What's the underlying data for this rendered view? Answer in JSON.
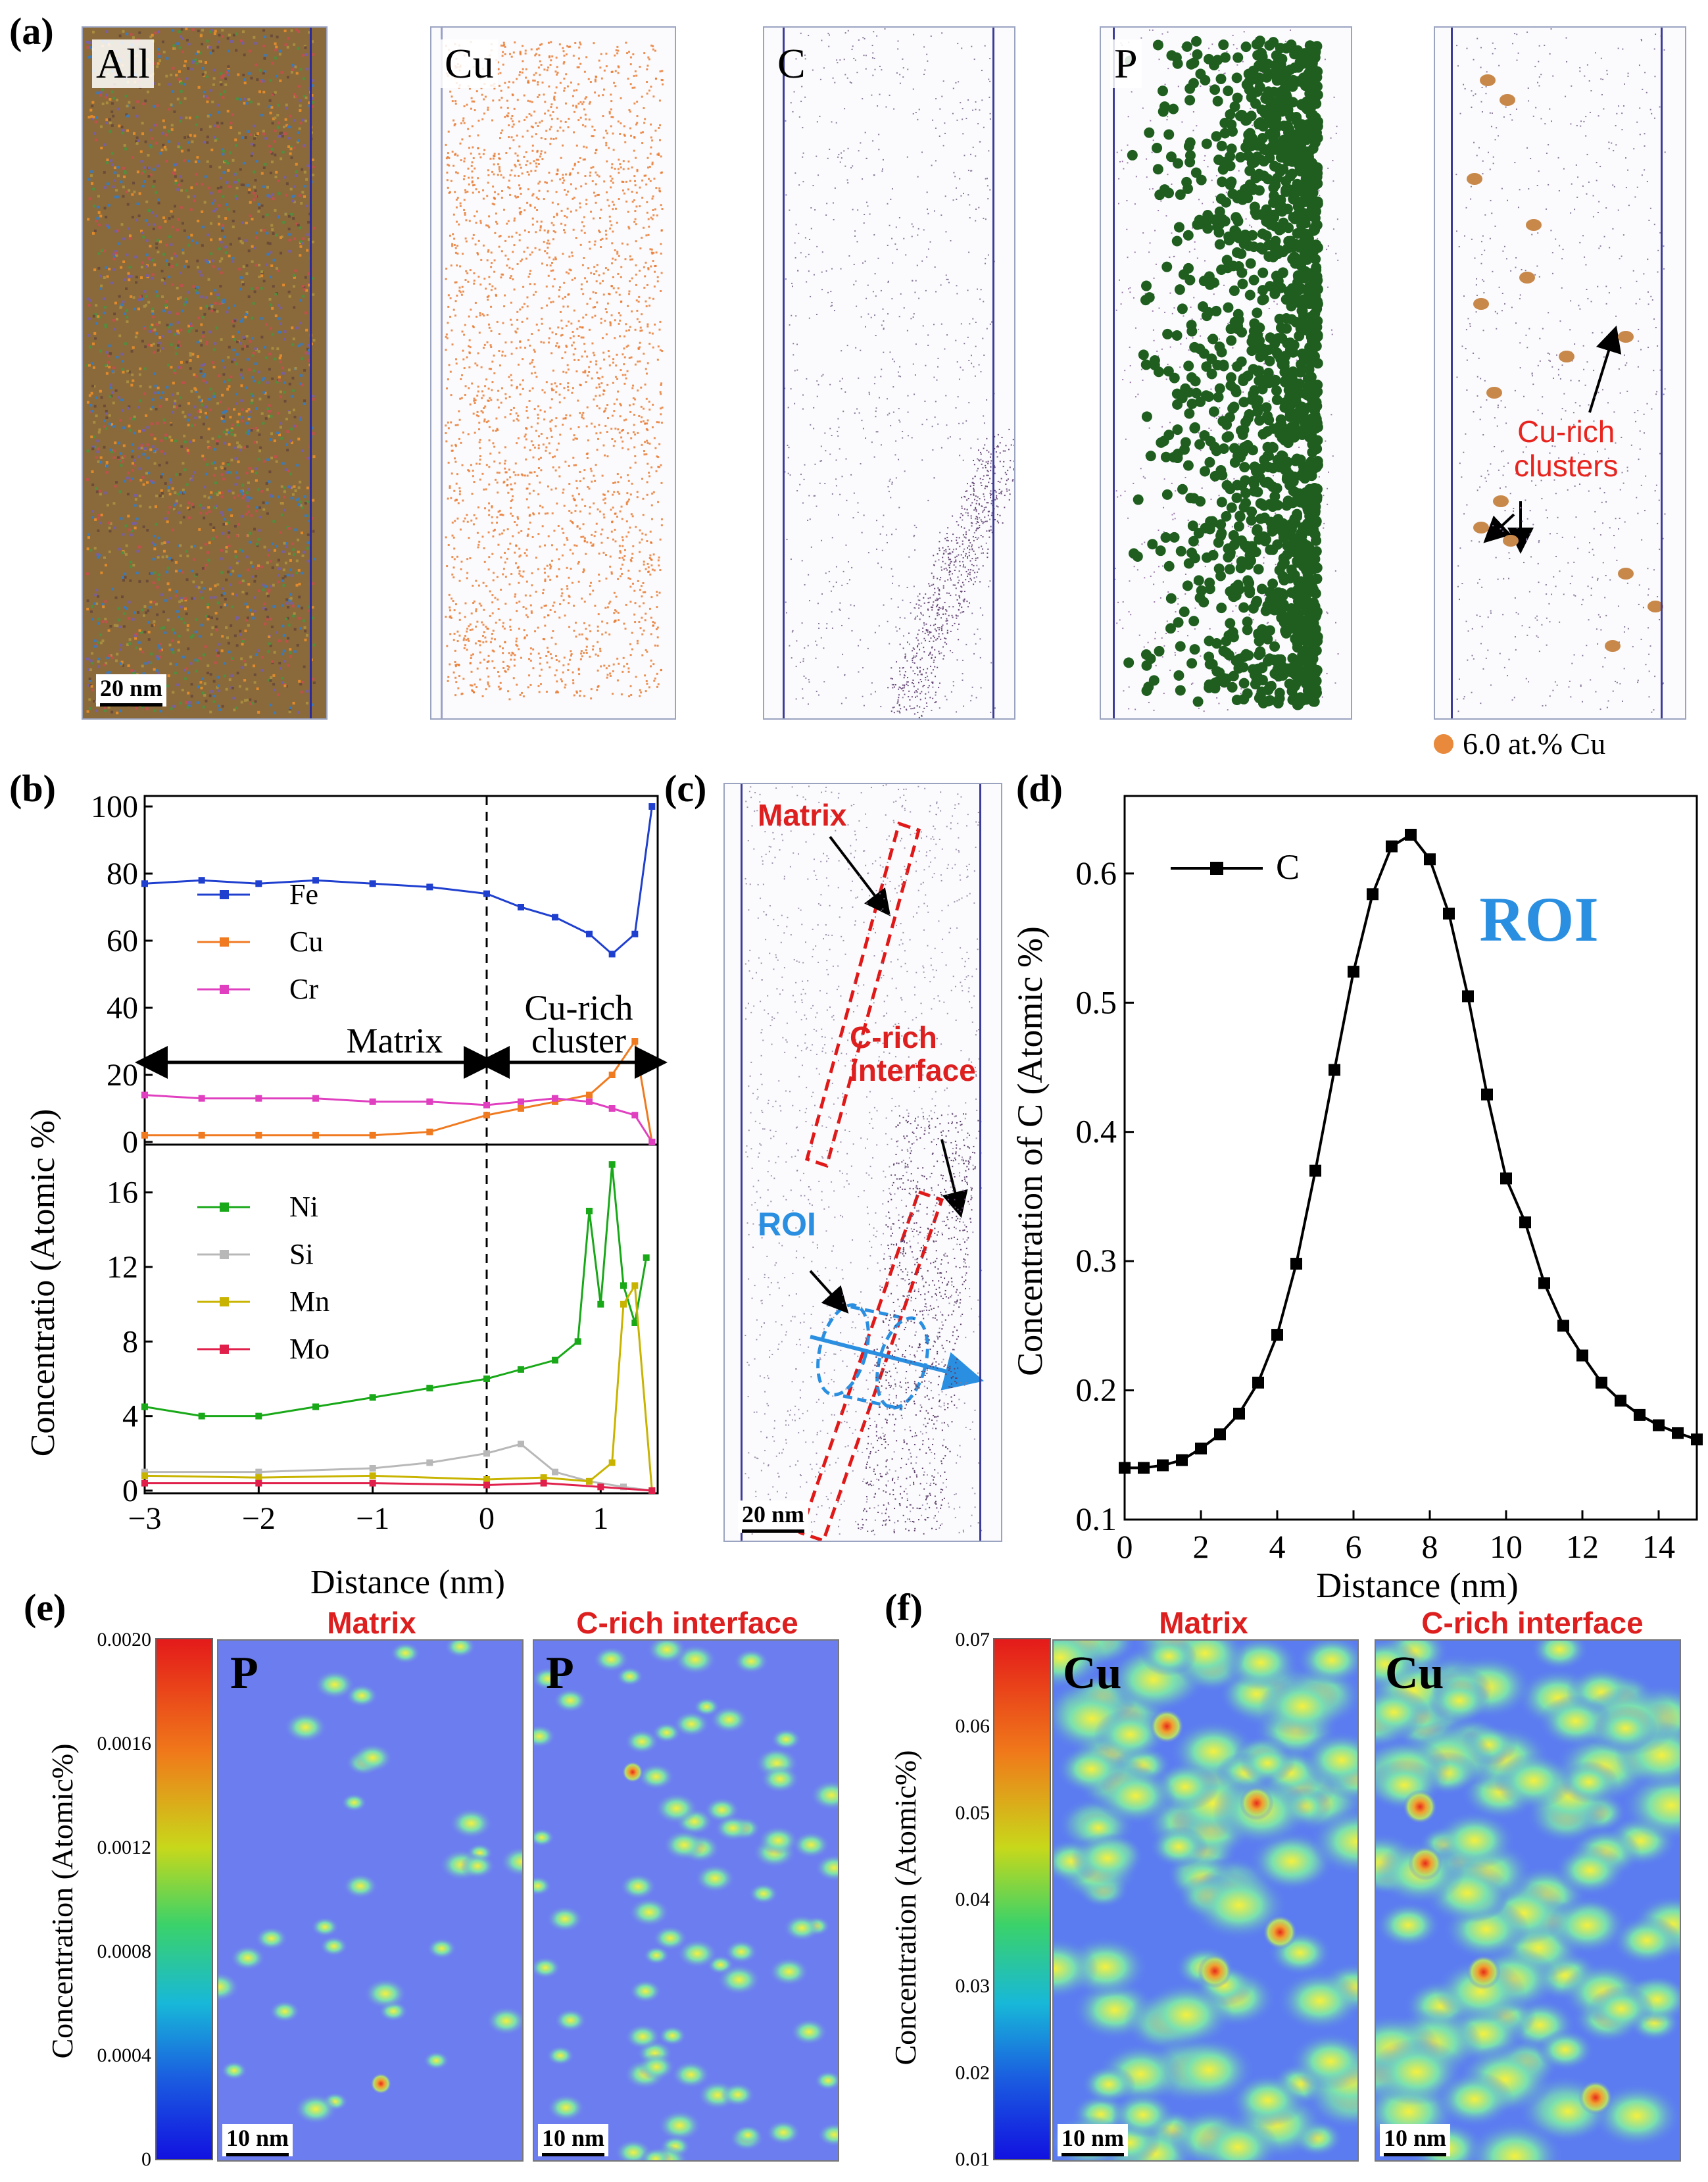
{
  "panel_a": {
    "label": "(a)",
    "boxes": [
      {
        "tag": "All",
        "fill": "mixed"
      },
      {
        "tag": "Cu",
        "fill": "#e8772c"
      },
      {
        "tag": "C",
        "fill": "#6b4c7a"
      },
      {
        "tag": "P",
        "fill": "#1f5e1f"
      },
      {
        "tag": "",
        "fill": "#6b4c7a"
      }
    ],
    "scale": "20 nm",
    "annotation": "Cu-rich\nclusters",
    "legend": "6.0 at.% Cu",
    "legend_color": "#e8893c"
  },
  "panel_b": {
    "label": "(b)",
    "ylabel": "Concentratio (Atomic %)",
    "xlabel": "Distance (nm)",
    "matrix_label": "Matrix",
    "cluster_label": "Cu-rich\ncluster",
    "chart_data": {
      "type": "line",
      "x_ticks": [
        "−3",
        "−2",
        "−1",
        "0",
        "1"
      ],
      "xlim": [
        -3,
        1.5
      ],
      "top": {
        "ylim": [
          0,
          100
        ],
        "y_ticks": [
          "0",
          "20",
          "40",
          "60",
          "80",
          "100"
        ],
        "series": [
          {
            "name": "Fe",
            "color": "#1f3fcf",
            "marker": "square",
            "x": [
              -3,
              -2.5,
              -2,
              -1.5,
              -1,
              -0.5,
              0,
              0.3,
              0.6,
              0.9,
              1.1,
              1.3,
              1.45
            ],
            "values": [
              77,
              78,
              77,
              78,
              77,
              76,
              74,
              70,
              67,
              62,
              56,
              62,
              100
            ]
          },
          {
            "name": "Cu",
            "color": "#f07a20",
            "marker": "triangle",
            "x": [
              -3,
              -2.5,
              -2,
              -1.5,
              -1,
              -0.5,
              0,
              0.3,
              0.6,
              0.9,
              1.1,
              1.3,
              1.45
            ],
            "values": [
              2,
              2,
              2,
              2,
              2,
              3,
              8,
              10,
              12,
              14,
              20,
              30,
              0
            ]
          },
          {
            "name": "Cr",
            "color": "#e040c0",
            "marker": "triangle-left",
            "x": [
              -3,
              -2.5,
              -2,
              -1.5,
              -1,
              -0.5,
              0,
              0.3,
              0.6,
              0.9,
              1.1,
              1.3,
              1.45
            ],
            "values": [
              14,
              13,
              13,
              13,
              12,
              12,
              11,
              12,
              13,
              12,
              10,
              8,
              0
            ]
          }
        ]
      },
      "bottom": {
        "ylim": [
          0,
          18
        ],
        "y_ticks": [
          "0",
          "4",
          "8",
          "12",
          "16"
        ],
        "series": [
          {
            "name": "Ni",
            "color": "#18a818",
            "marker": "diamond",
            "x": [
              -3,
              -2.5,
              -2,
              -1.5,
              -1,
              -0.5,
              0,
              0.3,
              0.6,
              0.8,
              0.9,
              1.0,
              1.1,
              1.2,
              1.3,
              1.4
            ],
            "values": [
              4.5,
              4,
              4,
              4.5,
              5,
              5.5,
              6,
              6.5,
              7,
              8,
              15,
              10,
              17.5,
              11,
              9,
              12.5
            ]
          },
          {
            "name": "Si",
            "color": "#b8b8b8",
            "marker": "triangle-right",
            "x": [
              -3,
              -2,
              -1,
              -0.5,
              0,
              0.3,
              0.6,
              0.9,
              1.2,
              1.45
            ],
            "values": [
              1,
              1,
              1.2,
              1.5,
              2,
              2.5,
              1,
              0.5,
              0.2,
              0
            ]
          },
          {
            "name": "Mn",
            "color": "#c8b400",
            "marker": "circle",
            "x": [
              -3,
              -2,
              -1,
              0,
              0.5,
              0.9,
              1.1,
              1.2,
              1.3,
              1.45
            ],
            "values": [
              0.8,
              0.7,
              0.8,
              0.6,
              0.7,
              0.5,
              1.5,
              10,
              11,
              0
            ]
          },
          {
            "name": "Mo",
            "color": "#e0204a",
            "marker": "star",
            "x": [
              -3,
              -2,
              -1,
              0,
              0.5,
              1.0,
              1.45
            ],
            "values": [
              0.4,
              0.4,
              0.4,
              0.3,
              0.4,
              0.2,
              0
            ]
          }
        ]
      }
    }
  },
  "panel_c": {
    "label": "(c)",
    "matrix": "Matrix",
    "crich": "C-rich\ninterface",
    "roi": "ROI",
    "scale": "20 nm"
  },
  "panel_d": {
    "label": "(d)",
    "legend": "C",
    "roi": "ROI",
    "ylabel": "Concentration of C (Atomic %)",
    "xlabel": "Distance (nm)",
    "chart_data": {
      "type": "line",
      "x_ticks": [
        "0",
        "2",
        "4",
        "6",
        "8",
        "10",
        "12",
        "14"
      ],
      "y_ticks": [
        "0.1",
        "0.2",
        "0.3",
        "0.4",
        "0.5",
        "0.6"
      ],
      "xlim": [
        0,
        15
      ],
      "ylim": [
        0.1,
        0.66
      ],
      "series": [
        {
          "name": "C",
          "x": [
            0,
            0.5,
            1,
            1.5,
            2,
            2.5,
            3,
            3.5,
            4,
            4.5,
            5,
            5.5,
            6,
            6.5,
            7,
            7.5,
            8,
            8.5,
            9,
            9.5,
            10,
            10.5,
            11,
            11.5,
            12,
            12.5,
            13,
            13.5,
            14,
            14.5,
            15
          ],
          "values": [
            0.14,
            0.14,
            0.142,
            0.146,
            0.155,
            0.166,
            0.182,
            0.206,
            0.243,
            0.298,
            0.37,
            0.448,
            0.524,
            0.584,
            0.621,
            0.63,
            0.611,
            0.569,
            0.505,
            0.429,
            0.364,
            0.33,
            0.283,
            0.25,
            0.227,
            0.206,
            0.192,
            0.181,
            0.173,
            0.167,
            0.162
          ]
        }
      ]
    }
  },
  "panel_e": {
    "label": "(e)",
    "ylabel": "Concentration (Atomic%)",
    "ticks": [
      "0.0020",
      "0.0016",
      "0.0012",
      "0.0008",
      "0.0004",
      "0"
    ],
    "title_left": "Matrix",
    "title_right": "C-rich interface",
    "tag": "P",
    "scale": "10 nm"
  },
  "panel_f": {
    "label": "(f)",
    "ylabel": "Concentration (Atomic%)",
    "ticks": [
      "0.07",
      "0.06",
      "0.05",
      "0.04",
      "0.03",
      "0.02",
      "0.01"
    ],
    "title_left": "Matrix",
    "title_right": "C-rich interface",
    "tag": "Cu",
    "scale": "10 nm"
  }
}
